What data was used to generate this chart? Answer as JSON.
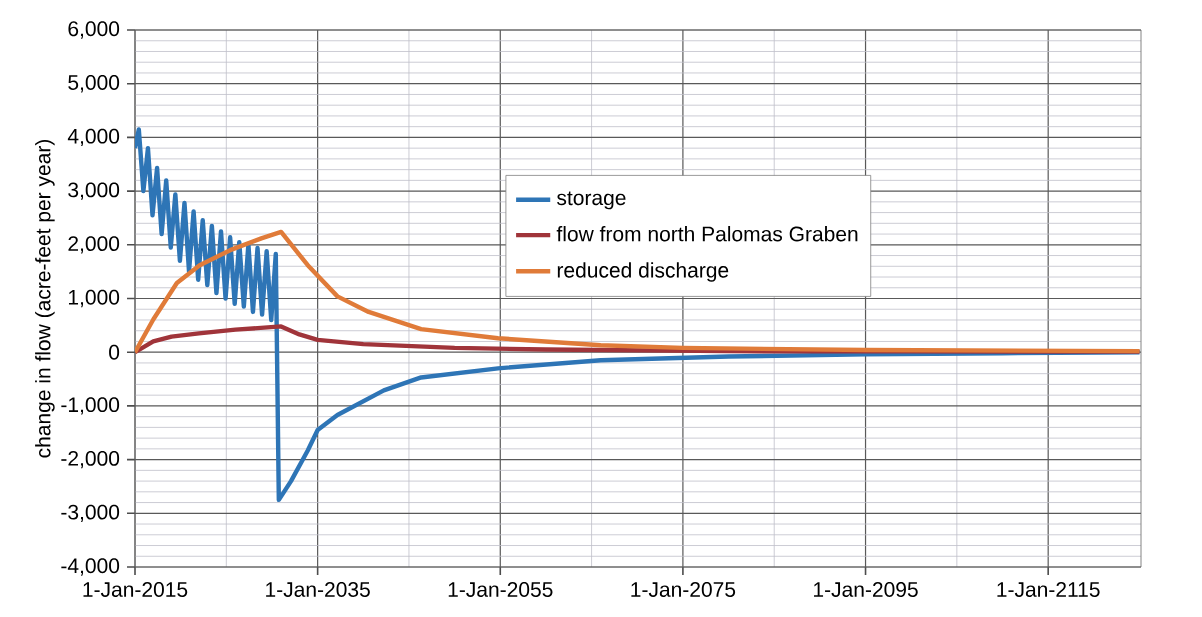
{
  "chart_data": {
    "type": "line",
    "ylabel": "change in flow (acre-feet per year)",
    "xlim": [
      "2015-01-01",
      "2125-03"
    ],
    "ylim": [
      -4000,
      6000
    ],
    "xticks": [
      {
        "value": "2015-01-01",
        "label": "1-Jan-2015"
      },
      {
        "value": "2035-01-01",
        "label": "1-Jan-2035"
      },
      {
        "value": "2055-01-01",
        "label": "1-Jan-2055"
      },
      {
        "value": "2075-01-01",
        "label": "1-Jan-2075"
      },
      {
        "value": "2095-01-01",
        "label": "1-Jan-2095"
      },
      {
        "value": "2115-01-01",
        "label": "1-Jan-2115"
      }
    ],
    "yticks": [
      {
        "value": -4000,
        "label": "-4,000"
      },
      {
        "value": -3000,
        "label": "-3,000"
      },
      {
        "value": -2000,
        "label": "-2,000"
      },
      {
        "value": -1000,
        "label": "-1,000"
      },
      0,
      {
        "value": 1000,
        "label": "1,000"
      },
      {
        "value": 2000,
        "label": "2,000"
      },
      {
        "value": 3000,
        "label": "3,000"
      },
      {
        "value": 4000,
        "label": "4,000"
      },
      {
        "value": 5000,
        "label": "5,000"
      },
      {
        "value": 6000,
        "label": "6,000"
      }
    ],
    "grid": true,
    "legend": "top",
    "marker": "none",
    "line_style": "solid",
    "series": [
      {
        "name": "storage",
        "color": "#2e75b6",
        "x": [
          "2015-01",
          "2015-06",
          "2015-12",
          "2016-06",
          "2016-12",
          "2017-06",
          "2017-12",
          "2018-06",
          "2018-12",
          "2019-06",
          "2019-12",
          "2020-06",
          "2020-12",
          "2021-06",
          "2021-12",
          "2022-06",
          "2022-12",
          "2023-06",
          "2023-12",
          "2024-06",
          "2024-12",
          "2025-06",
          "2025-12",
          "2026-06",
          "2026-12",
          "2027-06",
          "2027-12",
          "2028-06",
          "2028-12",
          "2029-06",
          "2029-12",
          "2030-06",
          "2030-10",
          "2032-02",
          "2033-12",
          "2035",
          "2037-03",
          "2042-04",
          "2046-05",
          "2054-10",
          "2066",
          "2080",
          "2095",
          "2110",
          "2125"
        ],
        "values": [
          3800,
          4150,
          3000,
          3800,
          2550,
          3430,
          2200,
          3200,
          1950,
          2940,
          1700,
          2780,
          1500,
          2620,
          1350,
          2460,
          1250,
          2350,
          1100,
          2250,
          1000,
          2140,
          900,
          2050,
          850,
          2010,
          750,
          1940,
          700,
          1880,
          600,
          1830,
          -2750,
          -2400,
          -1830,
          -1450,
          -1170,
          -710,
          -470,
          -300,
          -150,
          -80,
          -40,
          -20,
          0
        ]
      },
      {
        "name": "flow from north Palomas Graben",
        "color": "#a0343a",
        "x": [
          "2015",
          "2017",
          "2019",
          "2022",
          "2026",
          "2031",
          "2033",
          "2035",
          "2040",
          "2050",
          "2060",
          "2080",
          "2100",
          "2125"
        ],
        "values": [
          0,
          200,
          290,
          350,
          420,
          480,
          330,
          230,
          150,
          80,
          50,
          20,
          15,
          10
        ]
      },
      {
        "name": "reduced discharge",
        "color": "#e07b39",
        "x": [
          "2015",
          "2017",
          "2019-08",
          "2022-02",
          "2025-06",
          "2028-11",
          "2031",
          "2033-12",
          "2037-03",
          "2040-08",
          "2046-05",
          "2054-10",
          "2066",
          "2075",
          "2095",
          "2125"
        ],
        "values": [
          0,
          610,
          1290,
          1620,
          1900,
          2120,
          2240,
          1620,
          1040,
          750,
          430,
          260,
          130,
          80,
          40,
          20
        ]
      }
    ]
  }
}
